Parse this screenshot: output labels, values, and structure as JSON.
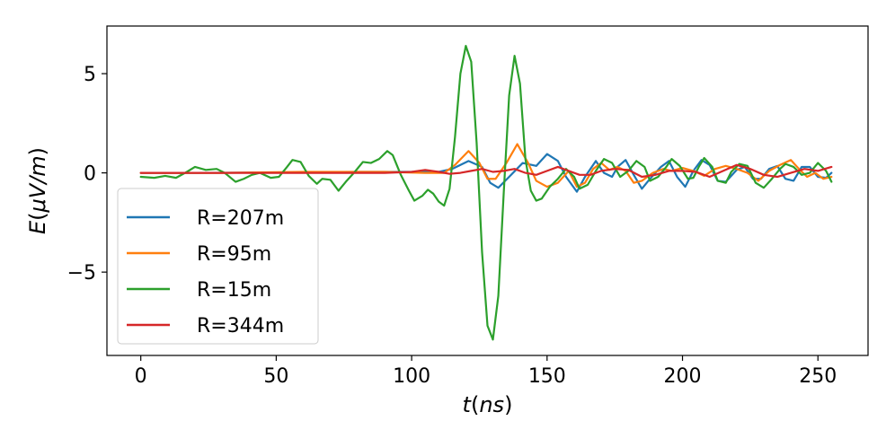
{
  "chart_data": {
    "type": "line",
    "xlabel_var": "t",
    "xlabel_unit": "ns",
    "ylabel_var": "E",
    "ylabel_unit": "μV/m",
    "xlim": [
      -12.5,
      268.5
    ],
    "ylim": [
      -9.2,
      7.4
    ],
    "x_ticks": [
      0,
      50,
      100,
      150,
      200,
      250
    ],
    "y_ticks": [
      -5,
      0,
      5
    ],
    "y_tick_labels": [
      "−5",
      "0",
      "5"
    ],
    "grid": false,
    "legend_position": "lower-left",
    "series": [
      {
        "name": "R=207m",
        "color": "#1f77b4",
        "points": [
          [
            0,
            0
          ],
          [
            20,
            0
          ],
          [
            50,
            0.02
          ],
          [
            80,
            0.05
          ],
          [
            100,
            0.05
          ],
          [
            110,
            0.05
          ],
          [
            115,
            0.2
          ],
          [
            121,
            0.6
          ],
          [
            126,
            0.3
          ],
          [
            129,
            -0.5
          ],
          [
            132,
            -0.75
          ],
          [
            136,
            -0.2
          ],
          [
            141,
            0.5
          ],
          [
            146,
            0.35
          ],
          [
            150,
            0.95
          ],
          [
            154,
            0.6
          ],
          [
            157,
            -0.2
          ],
          [
            161,
            -0.95
          ],
          [
            164,
            -0.2
          ],
          [
            168,
            0.6
          ],
          [
            171,
            0
          ],
          [
            174,
            -0.2
          ],
          [
            176,
            0.3
          ],
          [
            179,
            0.65
          ],
          [
            182,
            -0.1
          ],
          [
            185,
            -0.8
          ],
          [
            188,
            -0.3
          ],
          [
            192,
            0.3
          ],
          [
            195,
            0.6
          ],
          [
            198,
            -0.2
          ],
          [
            201,
            -0.7
          ],
          [
            204,
            0.1
          ],
          [
            207,
            0.65
          ],
          [
            210,
            0.4
          ],
          [
            213,
            -0.4
          ],
          [
            216,
            -0.45
          ],
          [
            220,
            0.15
          ],
          [
            223,
            0.3
          ],
          [
            226,
            -0.3
          ],
          [
            229,
            -0.3
          ],
          [
            232,
            0.2
          ],
          [
            235,
            0.35
          ],
          [
            238,
            -0.3
          ],
          [
            241,
            -0.4
          ],
          [
            244,
            0.3
          ],
          [
            247,
            0.3
          ],
          [
            250,
            -0.2
          ],
          [
            253,
            -0.25
          ],
          [
            255,
            0
          ]
        ]
      },
      {
        "name": "R=95m",
        "color": "#ff7f0e",
        "points": [
          [
            0,
            0
          ],
          [
            30,
            0
          ],
          [
            60,
            0.05
          ],
          [
            90,
            0.05
          ],
          [
            105,
            0
          ],
          [
            112,
            0
          ],
          [
            116,
            0.4
          ],
          [
            121,
            1.1
          ],
          [
            125,
            0.5
          ],
          [
            128,
            -0.3
          ],
          [
            131,
            -0.3
          ],
          [
            135,
            0.5
          ],
          [
            139,
            1.45
          ],
          [
            143,
            0.5
          ],
          [
            146,
            -0.4
          ],
          [
            150,
            -0.7
          ],
          [
            154,
            -0.5
          ],
          [
            158,
            0.1
          ],
          [
            161,
            -0.7
          ],
          [
            164,
            -0.5
          ],
          [
            167,
            0.2
          ],
          [
            170,
            0.5
          ],
          [
            173,
            0.15
          ],
          [
            176,
            0.3
          ],
          [
            179,
            0.1
          ],
          [
            182,
            -0.5
          ],
          [
            185,
            -0.4
          ],
          [
            189,
            0
          ],
          [
            193,
            0.2
          ],
          [
            196,
            0.1
          ],
          [
            200,
            0.25
          ],
          [
            204,
            0.1
          ],
          [
            208,
            -0.15
          ],
          [
            212,
            0.2
          ],
          [
            216,
            0.35
          ],
          [
            220,
            0.2
          ],
          [
            224,
            0
          ],
          [
            228,
            -0.4
          ],
          [
            232,
            0.1
          ],
          [
            236,
            0.4
          ],
          [
            240,
            0.65
          ],
          [
            243,
            0.2
          ],
          [
            246,
            -0.2
          ],
          [
            249,
            0
          ],
          [
            252,
            -0.3
          ],
          [
            255,
            -0.2
          ]
        ]
      },
      {
        "name": "R=15m",
        "color": "#2ca02c",
        "points": [
          [
            0,
            -0.2
          ],
          [
            5,
            -0.25
          ],
          [
            9,
            -0.15
          ],
          [
            13,
            -0.25
          ],
          [
            17,
            0.05
          ],
          [
            20,
            0.3
          ],
          [
            24,
            0.15
          ],
          [
            28,
            0.2
          ],
          [
            31,
            0
          ],
          [
            35,
            -0.45
          ],
          [
            38,
            -0.3
          ],
          [
            41,
            -0.1
          ],
          [
            44,
            0
          ],
          [
            48,
            -0.25
          ],
          [
            51,
            -0.2
          ],
          [
            54,
            0.3
          ],
          [
            56,
            0.65
          ],
          [
            59,
            0.55
          ],
          [
            62,
            -0.15
          ],
          [
            65,
            -0.55
          ],
          [
            67,
            -0.3
          ],
          [
            70,
            -0.35
          ],
          [
            73,
            -0.9
          ],
          [
            76,
            -0.4
          ],
          [
            79,
            0.05
          ],
          [
            82,
            0.55
          ],
          [
            85,
            0.5
          ],
          [
            88,
            0.7
          ],
          [
            91,
            1.1
          ],
          [
            93,
            0.9
          ],
          [
            96,
            -0.1
          ],
          [
            99,
            -0.9
          ],
          [
            101,
            -1.4
          ],
          [
            104,
            -1.15
          ],
          [
            106,
            -0.85
          ],
          [
            108,
            -1.05
          ],
          [
            110,
            -1.45
          ],
          [
            112,
            -1.65
          ],
          [
            114,
            -0.8
          ],
          [
            116,
            1.8
          ],
          [
            118,
            5.0
          ],
          [
            120,
            6.4
          ],
          [
            122,
            5.6
          ],
          [
            124,
            1.5
          ],
          [
            126,
            -4.0
          ],
          [
            128,
            -7.7
          ],
          [
            130,
            -8.4
          ],
          [
            132,
            -6.2
          ],
          [
            134,
            -1.0
          ],
          [
            136,
            3.9
          ],
          [
            138,
            5.9
          ],
          [
            140,
            4.5
          ],
          [
            142,
            0.7
          ],
          [
            144,
            -0.9
          ],
          [
            146,
            -1.4
          ],
          [
            148,
            -1.3
          ],
          [
            151,
            -0.7
          ],
          [
            154,
            -0.3
          ],
          [
            157,
            0.2
          ],
          [
            160,
            -0.2
          ],
          [
            162,
            -0.8
          ],
          [
            165,
            -0.6
          ],
          [
            168,
            0.1
          ],
          [
            171,
            0.7
          ],
          [
            174,
            0.5
          ],
          [
            177,
            -0.2
          ],
          [
            180,
            0.1
          ],
          [
            183,
            0.6
          ],
          [
            186,
            0.3
          ],
          [
            188,
            -0.4
          ],
          [
            191,
            -0.2
          ],
          [
            194,
            0.3
          ],
          [
            196,
            0.7
          ],
          [
            199,
            0.35
          ],
          [
            202,
            -0.3
          ],
          [
            204,
            -0.25
          ],
          [
            206,
            0.3
          ],
          [
            208,
            0.75
          ],
          [
            211,
            0.3
          ],
          [
            213,
            -0.4
          ],
          [
            216,
            -0.5
          ],
          [
            218,
            0.05
          ],
          [
            221,
            0.45
          ],
          [
            224,
            0.35
          ],
          [
            227,
            -0.5
          ],
          [
            230,
            -0.75
          ],
          [
            233,
            -0.3
          ],
          [
            236,
            0.2
          ],
          [
            238,
            0.45
          ],
          [
            241,
            0.3
          ],
          [
            244,
            -0.1
          ],
          [
            247,
            0
          ],
          [
            250,
            0.5
          ],
          [
            253,
            0.1
          ],
          [
            255,
            -0.45
          ]
        ]
      },
      {
        "name": "R=344m",
        "color": "#d62728",
        "points": [
          [
            0,
            0
          ],
          [
            30,
            0
          ],
          [
            60,
            0
          ],
          [
            90,
            0
          ],
          [
            100,
            0.05
          ],
          [
            105,
            0.15
          ],
          [
            110,
            0.05
          ],
          [
            114,
            -0.05
          ],
          [
            118,
            0
          ],
          [
            122,
            0.1
          ],
          [
            126,
            0.2
          ],
          [
            130,
            0.05
          ],
          [
            134,
            0.1
          ],
          [
            138,
            0.2
          ],
          [
            142,
            0
          ],
          [
            146,
            -0.1
          ],
          [
            150,
            0.1
          ],
          [
            154,
            0.3
          ],
          [
            158,
            0.1
          ],
          [
            162,
            -0.1
          ],
          [
            166,
            -0.1
          ],
          [
            170,
            0.1
          ],
          [
            175,
            0.2
          ],
          [
            180,
            0.15
          ],
          [
            185,
            -0.2
          ],
          [
            190,
            -0.1
          ],
          [
            195,
            0.1
          ],
          [
            200,
            0.1
          ],
          [
            205,
            0.05
          ],
          [
            210,
            -0.2
          ],
          [
            215,
            0.1
          ],
          [
            220,
            0.4
          ],
          [
            225,
            0.2
          ],
          [
            230,
            -0.1
          ],
          [
            235,
            -0.2
          ],
          [
            240,
            0
          ],
          [
            245,
            0.2
          ],
          [
            250,
            0.1
          ],
          [
            255,
            0.3
          ]
        ]
      }
    ]
  }
}
